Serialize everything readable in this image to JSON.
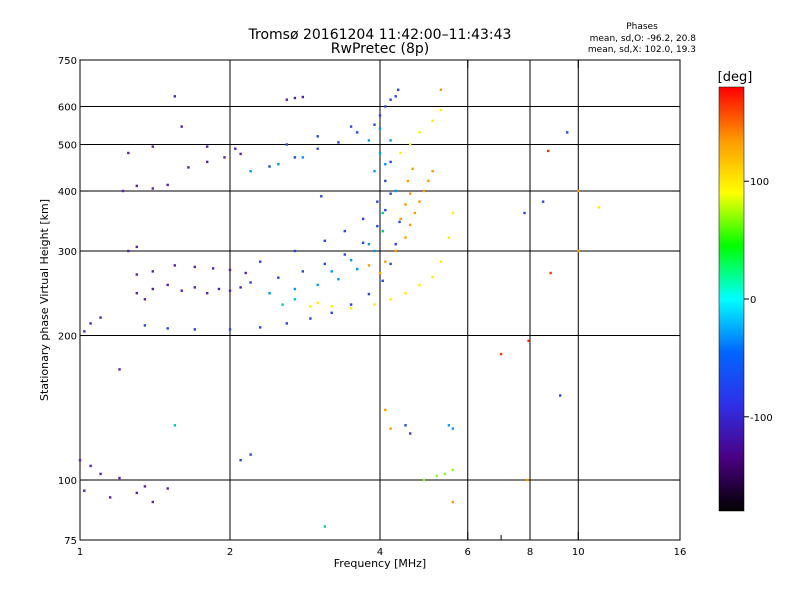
{
  "chart_data": {
    "type": "scatter",
    "title": "Tromsø 20161204 11:42:00–11:43:43",
    "subtitle": "RwPretec (8p)",
    "phase_box": {
      "title": "Phases",
      "line1": "mean, sd,O: -96.2, 20.8",
      "line2": "mean, sd,X: 102.0, 19.3"
    },
    "xlabel": "Frequency [MHz]",
    "ylabel": "Stationary phase Virtual Height [km]",
    "x_scale": "log",
    "y_scale": "log",
    "xlim": [
      1,
      16
    ],
    "ylim": [
      75,
      750
    ],
    "x_ticks": [
      1,
      2,
      4,
      6,
      8,
      10,
      16
    ],
    "x_ticks_minor": [
      7
    ],
    "x_gridlines": [
      2,
      4,
      6,
      8,
      10
    ],
    "y_ticks": [
      75,
      100,
      200,
      300,
      400,
      500,
      600,
      750
    ],
    "y_gridlines": [
      100,
      200,
      300,
      400,
      500,
      600
    ],
    "grid": true,
    "colorbar": {
      "label": "[deg]",
      "range": [
        -180,
        180
      ],
      "ticks": [
        100,
        0,
        -100
      ],
      "colormap": [
        "#000000",
        "#4b0082",
        "#2f2fe6",
        "#0066ff",
        "#00ffff",
        "#00ff00",
        "#ffff00",
        "#ff9900",
        "#ff0000"
      ]
    },
    "series": [
      {
        "color": "#5522aa",
        "points": [
          [
            1.02,
            204
          ],
          [
            1.05,
            212
          ],
          [
            1.1,
            218
          ],
          [
            1.3,
            245
          ],
          [
            1.35,
            238
          ],
          [
            1.4,
            250
          ],
          [
            1.5,
            255
          ],
          [
            1.6,
            248
          ],
          [
            1.7,
            252
          ],
          [
            1.8,
            245
          ],
          [
            1.9,
            250
          ],
          [
            2.0,
            248
          ],
          [
            2.1,
            252
          ],
          [
            1.3,
            268
          ],
          [
            1.4,
            272
          ],
          [
            1.55,
            280
          ],
          [
            1.7,
            278
          ],
          [
            1.85,
            276
          ],
          [
            2.0,
            274
          ],
          [
            2.15,
            270
          ],
          [
            1.25,
            300
          ],
          [
            1.3,
            306
          ],
          [
            1.22,
            400
          ],
          [
            1.3,
            410
          ],
          [
            1.4,
            405
          ],
          [
            1.5,
            412
          ],
          [
            1.65,
            448
          ],
          [
            1.8,
            460
          ],
          [
            1.95,
            470
          ],
          [
            2.1,
            478
          ],
          [
            1.25,
            480
          ],
          [
            1.4,
            495
          ],
          [
            1.8,
            495
          ],
          [
            2.05,
            490
          ],
          [
            1.0,
            110
          ],
          [
            1.05,
            107
          ],
          [
            1.1,
            103
          ],
          [
            1.2,
            101
          ],
          [
            1.35,
            97
          ],
          [
            1.5,
            96
          ],
          [
            1.02,
            95
          ],
          [
            1.15,
            92
          ],
          [
            1.3,
            94
          ],
          [
            1.4,
            90
          ],
          [
            2.6,
            620
          ],
          [
            2.7,
            625
          ],
          [
            2.8,
            628
          ],
          [
            1.6,
            545
          ],
          [
            1.55,
            630
          ],
          [
            1.2,
            170
          ]
        ]
      },
      {
        "color": "#2a44dd",
        "points": [
          [
            1.35,
            210
          ],
          [
            1.5,
            207
          ],
          [
            1.7,
            206
          ],
          [
            2.0,
            206
          ],
          [
            2.3,
            208
          ],
          [
            2.6,
            212
          ],
          [
            2.9,
            217
          ],
          [
            3.2,
            223
          ],
          [
            3.5,
            232
          ],
          [
            3.8,
            244
          ],
          [
            4.05,
            260
          ],
          [
            4.2,
            282
          ],
          [
            4.3,
            310
          ],
          [
            4.38,
            345
          ],
          [
            2.2,
            258
          ],
          [
            2.5,
            264
          ],
          [
            2.8,
            272
          ],
          [
            3.1,
            282
          ],
          [
            3.4,
            295
          ],
          [
            3.7,
            312
          ],
          [
            3.95,
            338
          ],
          [
            4.1,
            365
          ],
          [
            4.2,
            395
          ],
          [
            2.3,
            285
          ],
          [
            2.7,
            300
          ],
          [
            3.1,
            315
          ],
          [
            3.4,
            330
          ],
          [
            3.7,
            350
          ],
          [
            3.95,
            380
          ],
          [
            4.1,
            420
          ],
          [
            4.2,
            460
          ],
          [
            2.4,
            450
          ],
          [
            2.7,
            470
          ],
          [
            3.0,
            490
          ],
          [
            3.3,
            505
          ],
          [
            3.6,
            530
          ],
          [
            3.9,
            550
          ],
          [
            4.0,
            575
          ],
          [
            4.1,
            600
          ],
          [
            4.2,
            620
          ],
          [
            4.3,
            630
          ],
          [
            2.6,
            500
          ],
          [
            3.0,
            520
          ],
          [
            3.5,
            545
          ],
          [
            4.35,
            650
          ],
          [
            3.05,
            390
          ],
          [
            2.1,
            110
          ],
          [
            2.2,
            113
          ],
          [
            4.5,
            130
          ],
          [
            4.6,
            125
          ],
          [
            9.2,
            150
          ],
          [
            9.5,
            530
          ],
          [
            8.5,
            380
          ],
          [
            7.8,
            360
          ]
        ]
      },
      {
        "color": "#0099ee",
        "points": [
          [
            2.4,
            245
          ],
          [
            2.7,
            250
          ],
          [
            3.0,
            255
          ],
          [
            3.3,
            262
          ],
          [
            3.6,
            275
          ],
          [
            3.9,
            300
          ],
          [
            4.05,
            330
          ],
          [
            3.2,
            272
          ],
          [
            3.5,
            287
          ],
          [
            3.8,
            310
          ],
          [
            2.2,
            440
          ],
          [
            2.5,
            455
          ],
          [
            2.8,
            470
          ],
          [
            3.8,
            510
          ],
          [
            4.0,
            540
          ],
          [
            4.0,
            480
          ],
          [
            3.9,
            440
          ],
          [
            4.1,
            455
          ],
          [
            4.2,
            510
          ],
          [
            5.5,
            130
          ],
          [
            5.6,
            128
          ],
          [
            4.3,
            400
          ]
        ]
      },
      {
        "color": "#00ccaa",
        "points": [
          [
            2.55,
            232
          ],
          [
            2.7,
            238
          ],
          [
            1.55,
            130
          ],
          [
            4.05,
            330
          ],
          [
            4.05,
            360
          ],
          [
            3.1,
            80
          ]
        ]
      },
      {
        "color": "#ffee00",
        "points": [
          [
            3.0,
            234
          ],
          [
            3.2,
            230
          ],
          [
            3.5,
            228
          ],
          [
            3.9,
            232
          ],
          [
            4.2,
            238
          ],
          [
            4.5,
            245
          ],
          [
            4.8,
            255
          ],
          [
            5.1,
            265
          ],
          [
            5.3,
            285
          ],
          [
            5.5,
            320
          ],
          [
            5.6,
            360
          ],
          [
            4.4,
            480
          ],
          [
            4.6,
            500
          ],
          [
            4.8,
            530
          ],
          [
            5.1,
            560
          ],
          [
            5.3,
            590
          ],
          [
            11.0,
            370
          ],
          [
            2.9,
            230
          ]
        ]
      },
      {
        "color": "#ff9900",
        "points": [
          [
            3.8,
            280
          ],
          [
            4.0,
            270
          ],
          [
            4.1,
            285
          ],
          [
            4.3,
            300
          ],
          [
            4.5,
            320
          ],
          [
            4.6,
            340
          ],
          [
            4.7,
            360
          ],
          [
            4.8,
            380
          ],
          [
            4.9,
            400
          ],
          [
            5.0,
            420
          ],
          [
            5.1,
            440
          ],
          [
            4.4,
            350
          ],
          [
            4.5,
            375
          ],
          [
            4.6,
            395
          ],
          [
            4.55,
            420
          ],
          [
            4.65,
            445
          ],
          [
            5.3,
            650
          ],
          [
            7.9,
            100
          ],
          [
            10.0,
            400
          ],
          [
            10.0,
            300
          ],
          [
            4.1,
            140
          ],
          [
            4.2,
            128
          ],
          [
            5.6,
            90
          ]
        ]
      },
      {
        "color": "#ff3300",
        "points": [
          [
            7.0,
            183
          ],
          [
            7.95,
            195
          ],
          [
            8.7,
            485
          ],
          [
            8.8,
            270
          ]
        ]
      },
      {
        "color": "#88ff22",
        "points": [
          [
            5.2,
            102
          ],
          [
            5.4,
            103
          ],
          [
            5.6,
            105
          ],
          [
            4.9,
            100
          ]
        ]
      }
    ]
  }
}
